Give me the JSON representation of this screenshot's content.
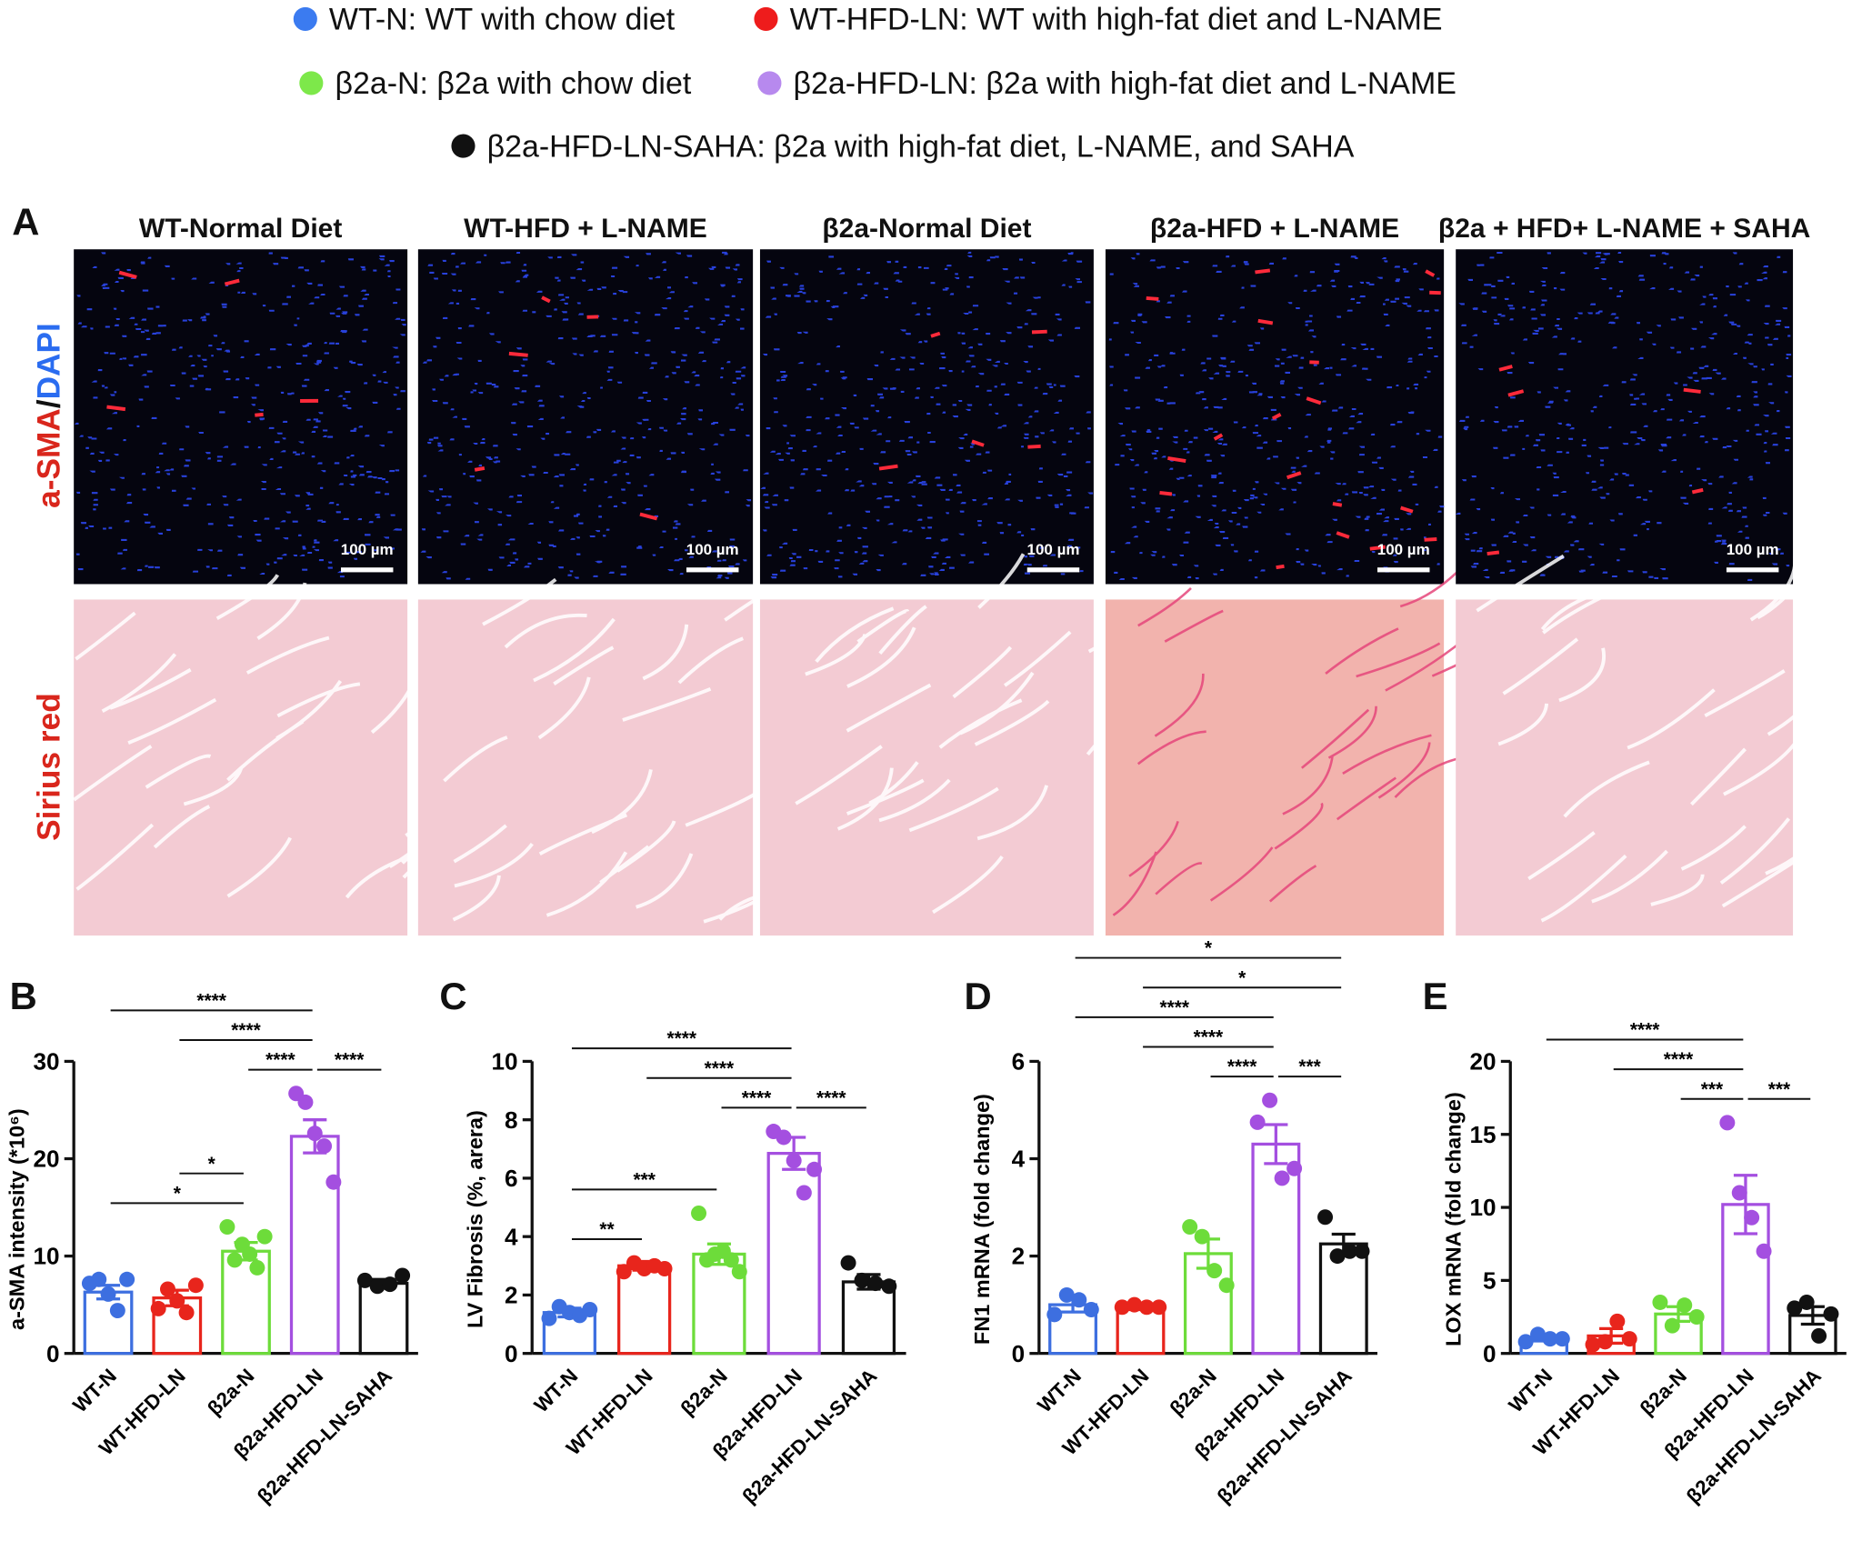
{
  "legend": [
    {
      "label": "WT-N: WT with chow diet",
      "color": "#3b7bf0"
    },
    {
      "label": "WT-HFD-LN: WT with high-fat diet and L-NAME",
      "color": "#ee1c1c"
    },
    {
      "label": "β2a-N: β2a with chow diet",
      "color": "#7de84a"
    },
    {
      "label": "β2a-HFD-LN: β2a with high-fat diet and L-NAME",
      "color": "#b789ee"
    },
    {
      "label": "β2a-HFD-LN-SAHA: β2a with high-fat diet, L-NAME, and SAHA",
      "color": "#111111"
    }
  ],
  "panel_a": {
    "label": "A",
    "columns": [
      "WT-Normal Diet",
      "WT-HFD + L-NAME",
      "β2a-Normal Diet",
      "β2a-HFD + L-NAME",
      "β2a + HFD+ L-NAME + SAHA"
    ],
    "row_1": [
      "a-SMA",
      "/",
      "DAPI"
    ],
    "row_2": "Sirius red",
    "scale_bar": "100 µm"
  },
  "chart_data": [
    {
      "type": "bar",
      "panel": "B",
      "y_label": "a-SMA intensity (*10⁶)",
      "categories": [
        "WT-N",
        "WT-HFD-LN",
        "β2a-N",
        "β2a-HFD-LN",
        "β2a-HFD-LN-SAHA"
      ],
      "colors": [
        "#3d6fe0",
        "#e8251c",
        "#6ddc3a",
        "#a44fe0",
        "#111111"
      ],
      "values": [
        6.3,
        5.7,
        10.5,
        22.3,
        7.2
      ],
      "errors": [
        0.7,
        0.8,
        0.9,
        1.7,
        0.4
      ],
      "points": [
        [
          7.2,
          7.6,
          6.1,
          4.4,
          7.6
        ],
        [
          4.6,
          6.6,
          5.4,
          4.2,
          7.0
        ],
        [
          13.0,
          9.6,
          11.2,
          10.2,
          8.8,
          12.0
        ],
        [
          26.7,
          25.8,
          22.6,
          21.3,
          17.6
        ],
        [
          7.5,
          6.9,
          7.1,
          8.0
        ]
      ],
      "comparisons": [
        {
          "pair": [
            0,
            2
          ],
          "label": "*"
        },
        {
          "pair": [
            1,
            2
          ],
          "label": "*"
        },
        {
          "pair": [
            2,
            3
          ],
          "label": "****"
        },
        {
          "pair": [
            3,
            4
          ],
          "label": "****"
        },
        {
          "pair": [
            1,
            3
          ],
          "label": "****"
        },
        {
          "pair": [
            0,
            3
          ],
          "label": "****"
        }
      ],
      "ylim": [
        0,
        30
      ],
      "yticks": [
        0,
        10,
        20,
        30
      ]
    },
    {
      "type": "bar",
      "panel": "C",
      "y_label": "LV Fibrosis (%, arera)",
      "categories": [
        "WT-N",
        "WT-HFD-LN",
        "β2a-N",
        "β2a-HFD-LN",
        "β2a-HFD-LN-SAHA"
      ],
      "colors": [
        "#3d6fe0",
        "#e8251c",
        "#6ddc3a",
        "#a44fe0",
        "#111111"
      ],
      "values": [
        1.4,
        3.0,
        3.4,
        6.85,
        2.45
      ],
      "errors": [
        0.15,
        0.15,
        0.35,
        0.55,
        0.25
      ],
      "points": [
        [
          1.2,
          1.6,
          1.4,
          1.3,
          1.5
        ],
        [
          2.8,
          3.1,
          2.9,
          3.0,
          2.9
        ],
        [
          4.8,
          3.2,
          3.4,
          3.5,
          3.2,
          2.8
        ],
        [
          7.6,
          7.4,
          6.6,
          5.5,
          6.3
        ],
        [
          3.1,
          2.5,
          2.4,
          2.3
        ]
      ],
      "comparisons": [
        {
          "pair": [
            0,
            1
          ],
          "label": "**"
        },
        {
          "pair": [
            0,
            2
          ],
          "label": "***"
        },
        {
          "pair": [
            2,
            3
          ],
          "label": "****"
        },
        {
          "pair": [
            3,
            4
          ],
          "label": "****"
        },
        {
          "pair": [
            1,
            3
          ],
          "label": "****"
        },
        {
          "pair": [
            0,
            3
          ],
          "label": "****"
        }
      ],
      "ylim": [
        0,
        10
      ],
      "yticks": [
        0,
        2,
        4,
        6,
        8,
        10
      ]
    },
    {
      "type": "bar",
      "panel": "D",
      "y_label": "FN1 mRNA (fold change)",
      "categories": [
        "WT-N",
        "WT-HFD-LN",
        "β2a-N",
        "β2a-HFD-LN",
        "β2a-HFD-LN-SAHA"
      ],
      "colors": [
        "#3d6fe0",
        "#e8251c",
        "#6ddc3a",
        "#a44fe0",
        "#111111"
      ],
      "values": [
        1.0,
        0.95,
        2.05,
        4.3,
        2.25
      ],
      "errors": [
        0.15,
        0.05,
        0.3,
        0.4,
        0.2
      ],
      "points": [
        [
          0.8,
          1.2,
          1.1,
          0.9
        ],
        [
          0.95,
          1.0,
          0.95,
          0.95
        ],
        [
          2.6,
          2.4,
          1.7,
          1.4
        ],
        [
          4.75,
          5.2,
          3.6,
          3.8
        ],
        [
          2.8,
          2.0,
          2.1,
          2.1
        ]
      ],
      "comparisons": [
        {
          "pair": [
            2,
            3
          ],
          "label": "****"
        },
        {
          "pair": [
            3,
            4
          ],
          "label": "***"
        },
        {
          "pair": [
            1,
            3
          ],
          "label": "****"
        },
        {
          "pair": [
            0,
            3
          ],
          "label": "****"
        },
        {
          "pair": [
            1,
            4
          ],
          "label": "*"
        },
        {
          "pair": [
            0,
            4
          ],
          "label": "*"
        }
      ],
      "ylim": [
        0,
        6
      ],
      "yticks": [
        0,
        2,
        4,
        6
      ]
    },
    {
      "type": "bar",
      "panel": "E",
      "y_label": "LOX mRNA (fold change)",
      "categories": [
        "WT-N",
        "WT-HFD-LN",
        "β2a-N",
        "β2a-HFD-LN",
        "β2a-HFD-LN-SAHA"
      ],
      "colors": [
        "#3d6fe0",
        "#e8251c",
        "#6ddc3a",
        "#a44fe0",
        "#111111"
      ],
      "values": [
        1.0,
        1.2,
        2.7,
        10.2,
        2.6
      ],
      "errors": [
        0.15,
        0.5,
        0.5,
        2.0,
        0.6
      ],
      "points": [
        [
          0.8,
          1.3,
          1.0,
          1.0
        ],
        [
          0.6,
          0.8,
          2.2,
          1.0
        ],
        [
          3.5,
          1.9,
          3.3,
          2.5
        ],
        [
          15.8,
          11.0,
          9.3,
          7.0
        ],
        [
          3.1,
          3.5,
          1.2,
          2.7
        ]
      ],
      "comparisons": [
        {
          "pair": [
            2,
            3
          ],
          "label": "***"
        },
        {
          "pair": [
            3,
            4
          ],
          "label": "***"
        },
        {
          "pair": [
            1,
            3
          ],
          "label": "****"
        },
        {
          "pair": [
            0,
            3
          ],
          "label": "****"
        }
      ],
      "ylim": [
        0,
        20
      ],
      "yticks": [
        0,
        5,
        10,
        15,
        20
      ]
    }
  ]
}
